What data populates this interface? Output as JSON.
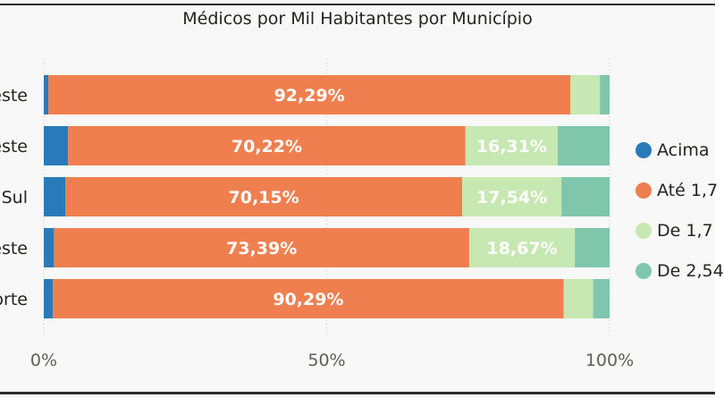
{
  "chart_data": {
    "type": "bar",
    "orientation": "horizontal",
    "stacked": "100%",
    "title": "Médicos por Mil Habitantes por Município",
    "categories": [
      "este",
      "este",
      "Sul",
      "este",
      "orte"
    ],
    "series": [
      {
        "name": "Acima",
        "color": "#2a7ab9",
        "values": [
          0.8,
          4.3,
          3.8,
          1.8,
          1.6
        ]
      },
      {
        "name": "Até 1,7",
        "color": "#f07f4f",
        "values": [
          92.29,
          70.22,
          70.15,
          73.39,
          90.29
        ]
      },
      {
        "name": "De 1,7",
        "color": "#c7e8b2",
        "values": [
          5.2,
          16.31,
          17.54,
          18.67,
          5.2
        ]
      },
      {
        "name": "De 2,54",
        "color": "#7fc6ad",
        "values": [
          1.71,
          9.17,
          8.51,
          6.14,
          2.91
        ]
      }
    ],
    "data_labels": [
      [
        "",
        "92,29%",
        "",
        ""
      ],
      [
        "",
        "70,22%",
        "16,31%",
        ""
      ],
      [
        "",
        "70,15%",
        "17,54%",
        ""
      ],
      [
        "",
        "73,39%",
        "18,67%",
        ""
      ],
      [
        "",
        "90,29%",
        "",
        ""
      ]
    ],
    "x_ticks": [
      "0%",
      "50%",
      "100%"
    ],
    "xlim": [
      0,
      100
    ],
    "grid": true,
    "legend_position": "right"
  }
}
